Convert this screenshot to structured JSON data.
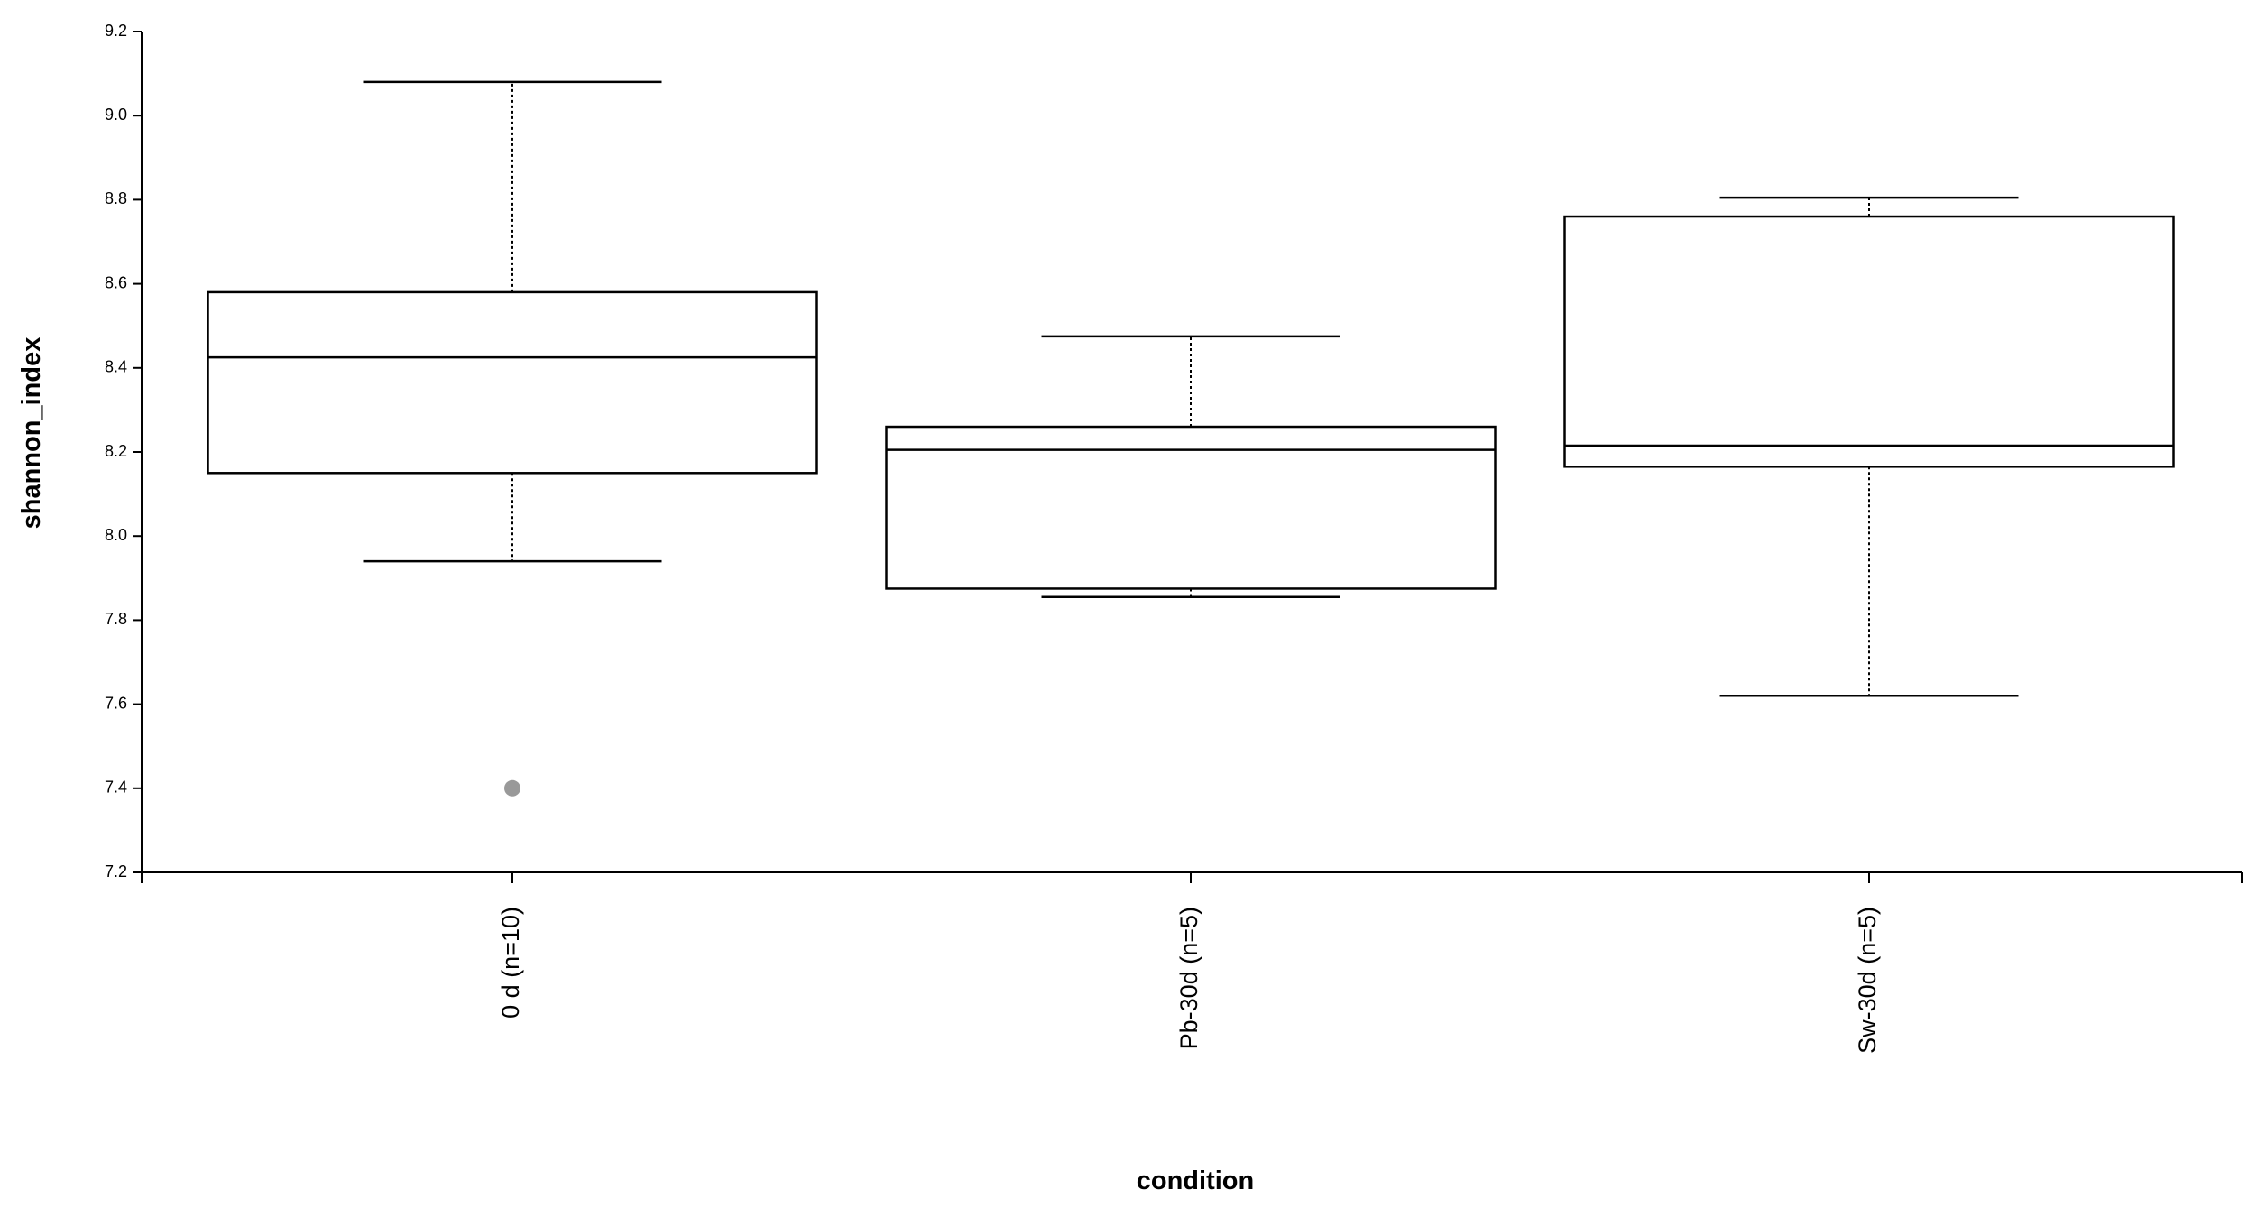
{
  "chart_data": {
    "type": "box",
    "x_label": "condition",
    "y_label": "shannon_index",
    "categories": [
      "0 d (n=10)",
      "Pb-30d (n=5)",
      "Sw-30d (n=5)"
    ],
    "boxes": [
      {
        "whisker_low": 7.94,
        "q1": 8.15,
        "median": 8.425,
        "q3": 8.58,
        "whisker_high": 9.08,
        "outliers": [
          7.4
        ]
      },
      {
        "whisker_low": 7.855,
        "q1": 7.875,
        "median": 8.205,
        "q3": 8.26,
        "whisker_high": 8.475,
        "outliers": []
      },
      {
        "whisker_low": 7.62,
        "q1": 8.165,
        "median": 8.215,
        "q3": 8.76,
        "whisker_high": 8.805,
        "outliers": []
      }
    ],
    "color": "#000000",
    "outlier_color": "#999999",
    "ylim": [
      7.2,
      9.2
    ],
    "yticks": [
      7.2,
      7.4,
      7.6,
      7.8,
      {
        "value": 8.0,
        "label": "8.0"
      },
      8.2,
      8.4,
      8.6,
      8.8,
      {
        "value": 9.0,
        "label": "9.0"
      },
      9.2
    ]
  }
}
